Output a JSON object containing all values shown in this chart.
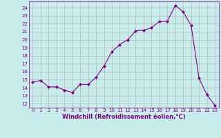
{
  "x": [
    0,
    1,
    2,
    3,
    4,
    5,
    6,
    7,
    8,
    9,
    10,
    11,
    12,
    13,
    14,
    15,
    16,
    17,
    18,
    19,
    20,
    21,
    22,
    23
  ],
  "y": [
    14.7,
    14.9,
    14.1,
    14.1,
    13.7,
    13.4,
    14.4,
    14.4,
    15.3,
    16.7,
    18.5,
    19.4,
    20.0,
    21.1,
    21.2,
    21.5,
    22.3,
    22.3,
    24.3,
    23.5,
    21.8,
    15.2,
    13.1,
    11.8
  ],
  "line_color": "#800080",
  "marker": "D",
  "marker_size": 2.0,
  "bg_color": "#c8ecec",
  "grid_color": "#aaaaaa",
  "xlabel": "Windchill (Refroidissement éolien,°C)",
  "ylabel_ticks": [
    12,
    13,
    14,
    15,
    16,
    17,
    18,
    19,
    20,
    21,
    22,
    23,
    24
  ],
  "xlim": [
    -0.5,
    23.5
  ],
  "ylim": [
    11.5,
    24.8
  ],
  "xticks": [
    0,
    1,
    2,
    3,
    4,
    5,
    6,
    7,
    8,
    9,
    10,
    11,
    12,
    13,
    14,
    15,
    16,
    17,
    18,
    19,
    20,
    21,
    22,
    23
  ],
  "tick_fontsize": 5.0,
  "xlabel_fontsize": 6.0
}
